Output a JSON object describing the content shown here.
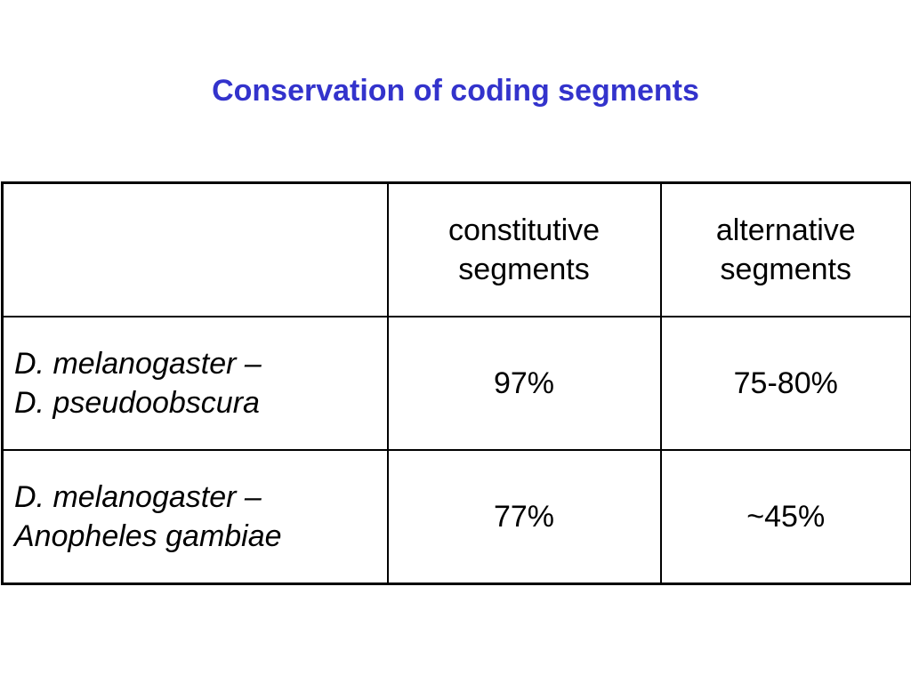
{
  "slide": {
    "title": "Conservation of coding segments",
    "title_color": "#3333cc"
  },
  "table": {
    "headers": [
      "",
      {
        "line1": "constitutive",
        "line2": "segments"
      },
      {
        "line1": "alternative",
        "line2": "segments"
      }
    ],
    "rows": [
      {
        "pair_line1": "D. melanogaster –",
        "pair_line2": "D. pseudoobscura",
        "constitutive": "97%",
        "alternative": "75-80%"
      },
      {
        "pair_line1": "D. melanogaster –",
        "pair_line2": "Anopheles gambiae",
        "constitutive": "77%",
        "alternative": "~45%"
      }
    ]
  }
}
